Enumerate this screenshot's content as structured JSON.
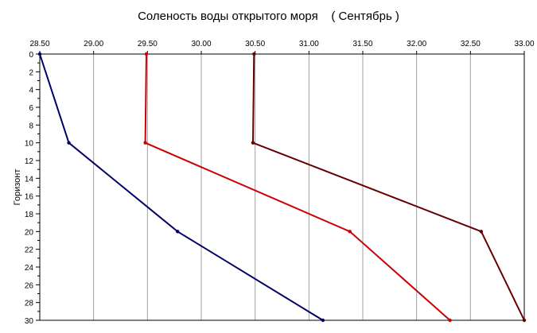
{
  "chart_data": {
    "type": "line",
    "title": "Соленость воды открытого моря    ( Сентябрь )",
    "xlabel": "",
    "ylabel": "Горизонт",
    "x_axis_position": "top",
    "y_axis_inverted": true,
    "xlim": [
      28.5,
      33.0
    ],
    "ylim": [
      0,
      30
    ],
    "x_ticks": [
      "28.50",
      "29.00",
      "29.50",
      "30.00",
      "30.50",
      "31.00",
      "31.50",
      "32.00",
      "32.50",
      "33.00"
    ],
    "y_ticks": [
      "0",
      "2",
      "4",
      "6",
      "8",
      "10",
      "12",
      "14",
      "16",
      "18",
      "20",
      "22",
      "24",
      "26",
      "28",
      "30"
    ],
    "grid": true,
    "series": [
      {
        "color": "#000066",
        "points": [
          {
            "x": 28.5,
            "y": 0
          },
          {
            "x": 28.77,
            "y": 10
          },
          {
            "x": 29.78,
            "y": 20
          },
          {
            "x": 31.13,
            "y": 30
          }
        ]
      },
      {
        "color": "#cc0000",
        "points": [
          {
            "x": 29.49,
            "y": 0
          },
          {
            "x": 29.48,
            "y": 10
          },
          {
            "x": 31.38,
            "y": 20
          },
          {
            "x": 32.31,
            "y": 30
          }
        ]
      },
      {
        "color": "#660000",
        "points": [
          {
            "x": 30.49,
            "y": 0
          },
          {
            "x": 30.48,
            "y": 10
          },
          {
            "x": 32.6,
            "y": 20
          },
          {
            "x": 33.0,
            "y": 30
          }
        ]
      }
    ]
  }
}
